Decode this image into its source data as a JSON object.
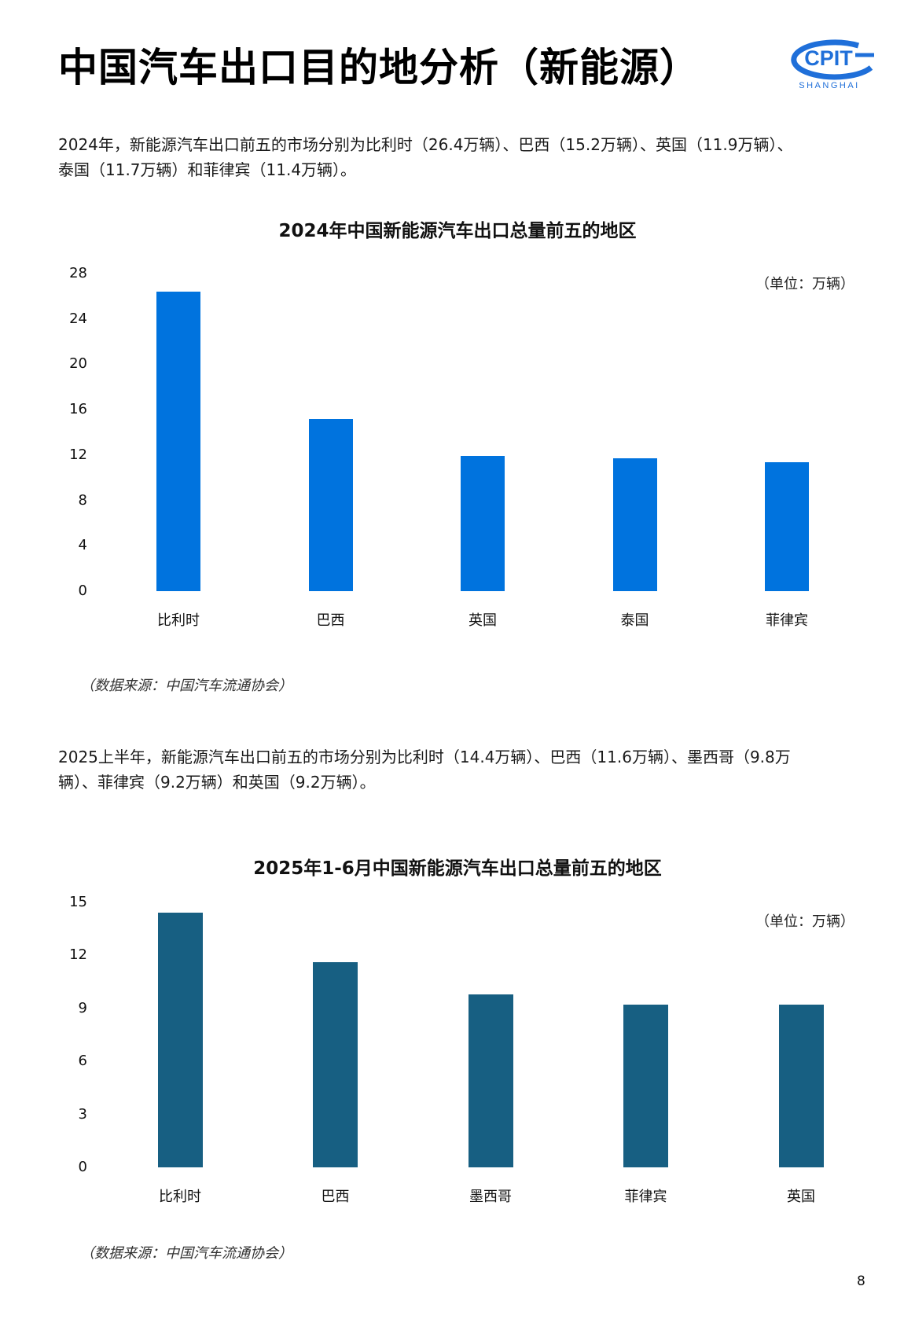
{
  "header": {
    "title": "中国汽车出口目的地分析（新能源）",
    "logo": {
      "text": "CPIT",
      "subtext": "SHANGHAI",
      "color": "#1f6fd9"
    }
  },
  "section1": {
    "paragraph_line1": "2024年，新能源汽车出口前五的市场分别为比利时（26.4万辆）、巴西（15.2万辆）、英国（11.9万辆）、",
    "paragraph_line2": "泰国（11.7万辆）和菲律宾（11.4万辆）。",
    "source": "（数据来源：中国汽车流通协会）"
  },
  "section2": {
    "paragraph_line1": "2025上半年，新能源汽车出口前五的市场分别为比利时（14.4万辆）、巴西（11.6万辆）、墨西哥（9.8万",
    "paragraph_line2": "辆）、菲律宾（9.2万辆）和英国（9.2万辆）。",
    "source": "（数据来源：中国汽车流通协会）"
  },
  "page_number": "8",
  "chart_data": [
    {
      "type": "bar",
      "title": "2024年中国新能源汽车出口总量前五的地区",
      "unit_label": "（单位：万辆）",
      "categories": [
        "比利时",
        "巴西",
        "英国",
        "泰国",
        "菲律宾"
      ],
      "values": [
        26.4,
        15.2,
        11.9,
        11.7,
        11.4
      ],
      "yticks": [
        "28",
        "24",
        "20",
        "16",
        "12",
        "8",
        "4",
        "0"
      ],
      "ylim": [
        0,
        28
      ],
      "xlabel": "",
      "ylabel": "",
      "grid": false,
      "color": "#0073de"
    },
    {
      "type": "bar",
      "title": "2025年1-6月中国新能源汽车出口总量前五的地区",
      "unit_label": "（单位：万辆）",
      "categories": [
        "比利时",
        "巴西",
        "墨西哥",
        "菲律宾",
        "英国"
      ],
      "values": [
        14.4,
        11.6,
        9.8,
        9.2,
        9.2
      ],
      "yticks": [
        "15",
        "12",
        "9",
        "6",
        "3",
        "0"
      ],
      "ylim": [
        0,
        15
      ],
      "xlabel": "",
      "ylabel": "",
      "grid": false,
      "color": "#175f82"
    }
  ]
}
